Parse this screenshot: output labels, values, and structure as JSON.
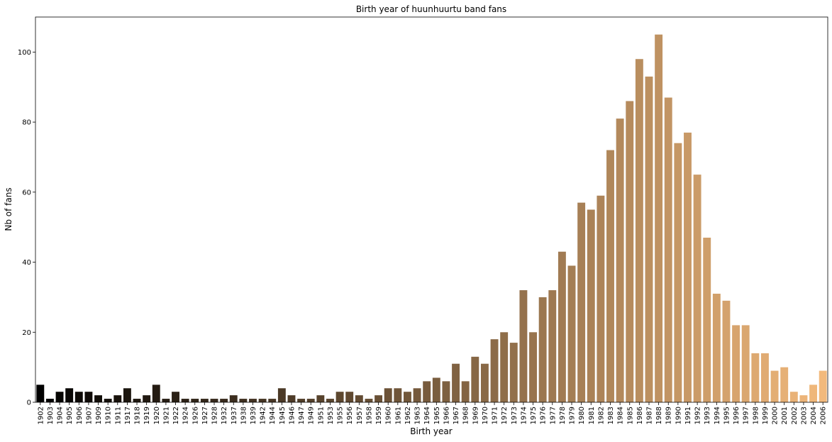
{
  "chart_data": {
    "type": "bar",
    "title": "Birth year of huunhuurtu band fans",
    "xlabel": "Birth year",
    "ylabel": "Nb of fans",
    "ylim": [
      0,
      110
    ],
    "yticks": [
      0,
      20,
      40,
      60,
      80,
      100
    ],
    "grid": false,
    "palette": "copper",
    "color_start": "#000000",
    "color_end": "#f2b97c",
    "categories": [
      "1902",
      "1903",
      "1904",
      "1905",
      "1906",
      "1907",
      "1909",
      "1910",
      "1911",
      "1917",
      "1918",
      "1919",
      "1920",
      "1921",
      "1922",
      "1924",
      "1926",
      "1927",
      "1928",
      "1932",
      "1937",
      "1938",
      "1939",
      "1942",
      "1944",
      "1945",
      "1946",
      "1947",
      "1949",
      "1951",
      "1953",
      "1955",
      "1956",
      "1957",
      "1958",
      "1959",
      "1960",
      "1961",
      "1962",
      "1963",
      "1964",
      "1965",
      "1966",
      "1967",
      "1968",
      "1969",
      "1970",
      "1971",
      "1972",
      "1973",
      "1974",
      "1975",
      "1976",
      "1977",
      "1978",
      "1979",
      "1980",
      "1981",
      "1982",
      "1983",
      "1984",
      "1985",
      "1986",
      "1987",
      "1988",
      "1989",
      "1990",
      "1991",
      "1992",
      "1993",
      "1994",
      "1995",
      "1996",
      "1997",
      "1998",
      "1999",
      "2000",
      "2001",
      "2002",
      "2003",
      "2004",
      "2006"
    ],
    "values": [
      5,
      1,
      3,
      4,
      3,
      3,
      2,
      1,
      2,
      4,
      1,
      2,
      5,
      1,
      3,
      1,
      1,
      1,
      1,
      1,
      2,
      1,
      1,
      1,
      1,
      4,
      2,
      1,
      1,
      2,
      1,
      3,
      3,
      2,
      1,
      2,
      4,
      4,
      3,
      4,
      6,
      7,
      6,
      11,
      6,
      13,
      11,
      18,
      20,
      17,
      32,
      20,
      30,
      32,
      43,
      39,
      57,
      55,
      59,
      72,
      81,
      86,
      98,
      93,
      105,
      87,
      74,
      77,
      65,
      47,
      31,
      29,
      22,
      22,
      14,
      14,
      9,
      10,
      3,
      2,
      5,
      9
    ]
  }
}
